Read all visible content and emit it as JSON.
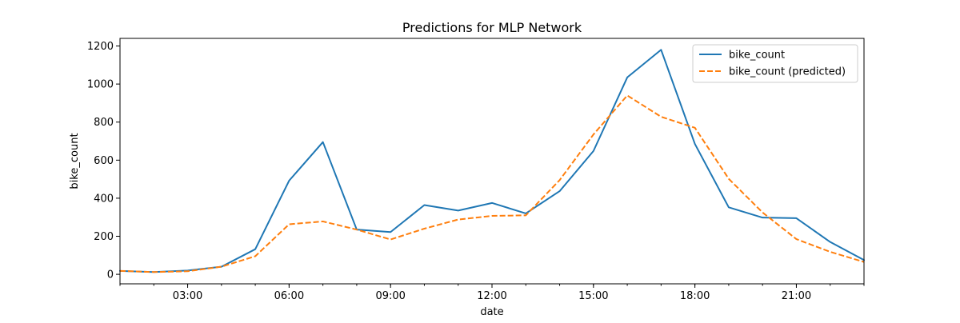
{
  "chart_data": {
    "type": "line",
    "title": "Predictions for MLP Network",
    "xlabel": "date",
    "ylabel": "bike_count",
    "x_hours": [
      1,
      2,
      3,
      4,
      5,
      6,
      7,
      8,
      9,
      10,
      11,
      12,
      13,
      14,
      15,
      16,
      17,
      18,
      19,
      20,
      21,
      22,
      23
    ],
    "xlim": [
      1,
      23
    ],
    "ylim": [
      -50,
      1240
    ],
    "x_ticks": [
      {
        "value": 3,
        "label": "03:00"
      },
      {
        "value": 6,
        "label": "06:00"
      },
      {
        "value": 9,
        "label": "09:00"
      },
      {
        "value": 12,
        "label": "12:00"
      },
      {
        "value": 15,
        "label": "15:00"
      },
      {
        "value": 18,
        "label": "18:00"
      },
      {
        "value": 21,
        "label": "21:00"
      }
    ],
    "y_ticks": [
      0,
      200,
      400,
      600,
      800,
      1000,
      1200
    ],
    "grid": false,
    "legend_position": "top-right",
    "series": [
      {
        "name": "bike_count",
        "color": "#1f77b4",
        "style": "solid",
        "values": [
          18,
          12,
          20,
          40,
          132,
          492,
          695,
          235,
          222,
          364,
          335,
          375,
          320,
          437,
          648,
          1035,
          1180,
          685,
          352,
          298,
          295,
          170,
          75
        ]
      },
      {
        "name": "bike_count (predicted)",
        "color": "#ff7f0e",
        "style": "dashed",
        "values": [
          18,
          12,
          16,
          40,
          95,
          263,
          278,
          235,
          183,
          240,
          288,
          307,
          310,
          495,
          735,
          940,
          828,
          770,
          502,
          325,
          185,
          118,
          65
        ]
      }
    ]
  }
}
